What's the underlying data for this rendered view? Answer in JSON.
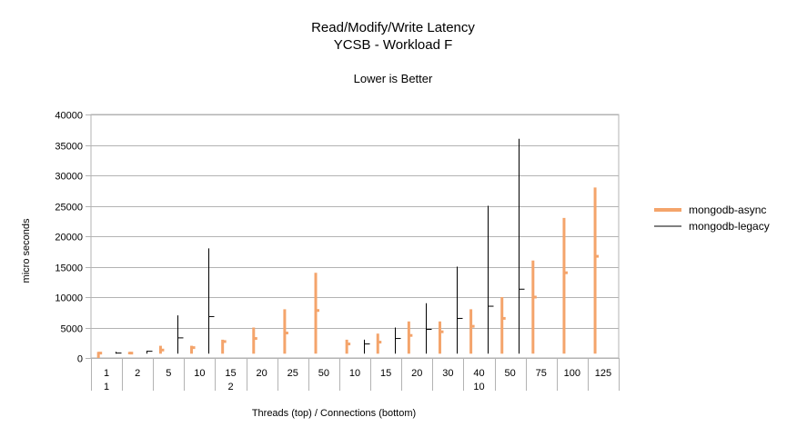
{
  "chart_data": {
    "type": "stock-hilo",
    "title": "Read/Modify/Write Latency",
    "subtitle": "YCSB - Workload F",
    "note": "Lower is Better",
    "xlabel": "Threads (top)  / Connections (bottom)",
    "ylabel": "micro seconds",
    "ylim": [
      0,
      40000
    ],
    "yticks": [
      0,
      5000,
      10000,
      15000,
      20000,
      25000,
      30000,
      35000,
      40000
    ],
    "grid": true,
    "legend_position": "right",
    "categories": [
      {
        "threads": "1",
        "connections": "1"
      },
      {
        "threads": "2",
        "connections": "2"
      },
      {
        "threads": "5",
        "connections": "2"
      },
      {
        "threads": "10",
        "connections": "2"
      },
      {
        "threads": "15",
        "connections": "2"
      },
      {
        "threads": "20",
        "connections": "2"
      },
      {
        "threads": "25",
        "connections": "2"
      },
      {
        "threads": "50",
        "connections": "2"
      },
      {
        "threads": "10",
        "connections": "10"
      },
      {
        "threads": "15",
        "connections": "10"
      },
      {
        "threads": "20",
        "connections": "10"
      },
      {
        "threads": "30",
        "connections": "10"
      },
      {
        "threads": "40",
        "connections": "10"
      },
      {
        "threads": "50",
        "connections": "10"
      },
      {
        "threads": "75",
        "connections": "10"
      },
      {
        "threads": "100",
        "connections": "10"
      },
      {
        "threads": "125",
        "connections": "10"
      }
    ],
    "connection_groups": [
      {
        "label": "1",
        "span": 1
      },
      {
        "label": "2",
        "span": 7
      },
      {
        "label": "10",
        "span": 9
      }
    ],
    "series": [
      {
        "name": "mongodb-async",
        "color": "#f4a46b",
        "low": [
          0,
          600,
          700,
          700,
          700,
          700,
          700,
          700,
          700,
          700,
          700,
          700,
          700,
          700,
          700,
          700,
          700
        ],
        "high": [
          1000,
          1000,
          2000,
          2000,
          3000,
          5000,
          8000,
          14000,
          3000,
          4000,
          6000,
          6000,
          8000,
          10000,
          16000,
          23000,
          28000
        ],
        "avg": [
          800,
          800,
          1300,
          1700,
          2700,
          3200,
          4100,
          7800,
          2300,
          2600,
          3700,
          4300,
          5200,
          6500,
          10000,
          14000,
          16700
        ]
      },
      {
        "name": "mongodb-legacy",
        "color": "#000000",
        "low": [
          700,
          700,
          700,
          700,
          null,
          null,
          null,
          null,
          700,
          700,
          700,
          700,
          700,
          700,
          null,
          null,
          null
        ],
        "high": [
          1000,
          1200,
          7000,
          18000,
          null,
          null,
          null,
          null,
          3000,
          5000,
          9000,
          15000,
          25000,
          36000,
          null,
          null,
          null
        ],
        "avg": [
          800,
          1100,
          3300,
          6800,
          null,
          null,
          null,
          null,
          2300,
          3200,
          4700,
          6500,
          8500,
          11300,
          null,
          null,
          null
        ]
      }
    ]
  }
}
